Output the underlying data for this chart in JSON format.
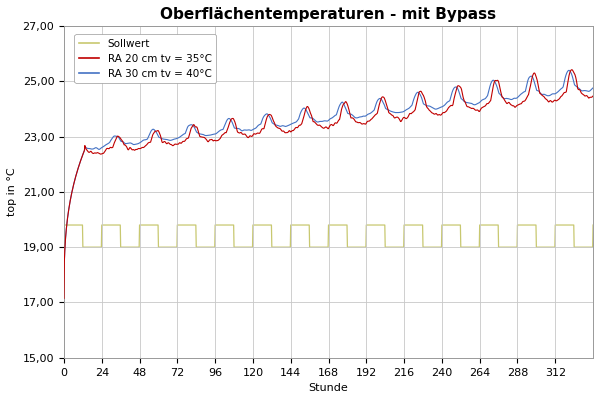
{
  "title": "Oberflächentemperaturen - mit Bypass",
  "xlabel": "Stunde",
  "ylabel": "top in °C",
  "xlim": [
    0,
    336
  ],
  "ylim": [
    15.0,
    27.0
  ],
  "yticks": [
    15.0,
    17.0,
    19.0,
    21.0,
    23.0,
    25.0,
    27.0
  ],
  "xticks": [
    0,
    24,
    48,
    72,
    96,
    120,
    144,
    168,
    192,
    216,
    240,
    264,
    288,
    312
  ],
  "sollwert_color": "#c8c870",
  "red_color": "#c00000",
  "blue_color": "#4472c4",
  "background_color": "#ffffff",
  "grid_color": "#c8c8c8",
  "sollwert_level_low": 19.0,
  "sollwert_level_high": 19.8,
  "legend_labels": [
    "Sollwert",
    "RA 20 cm tv = 35°C",
    "RA 30 cm tv = 40°C"
  ],
  "title_fontsize": 11,
  "axis_fontsize": 8,
  "tick_fontsize": 8,
  "ramp_end_hour": 13,
  "base_start": 17.15,
  "plateau_base": 22.5,
  "trend_total": 2.3,
  "total_hours": 336,
  "sw_period": 24,
  "sw_high_duration": 12,
  "sw_start_high_duration": 12
}
